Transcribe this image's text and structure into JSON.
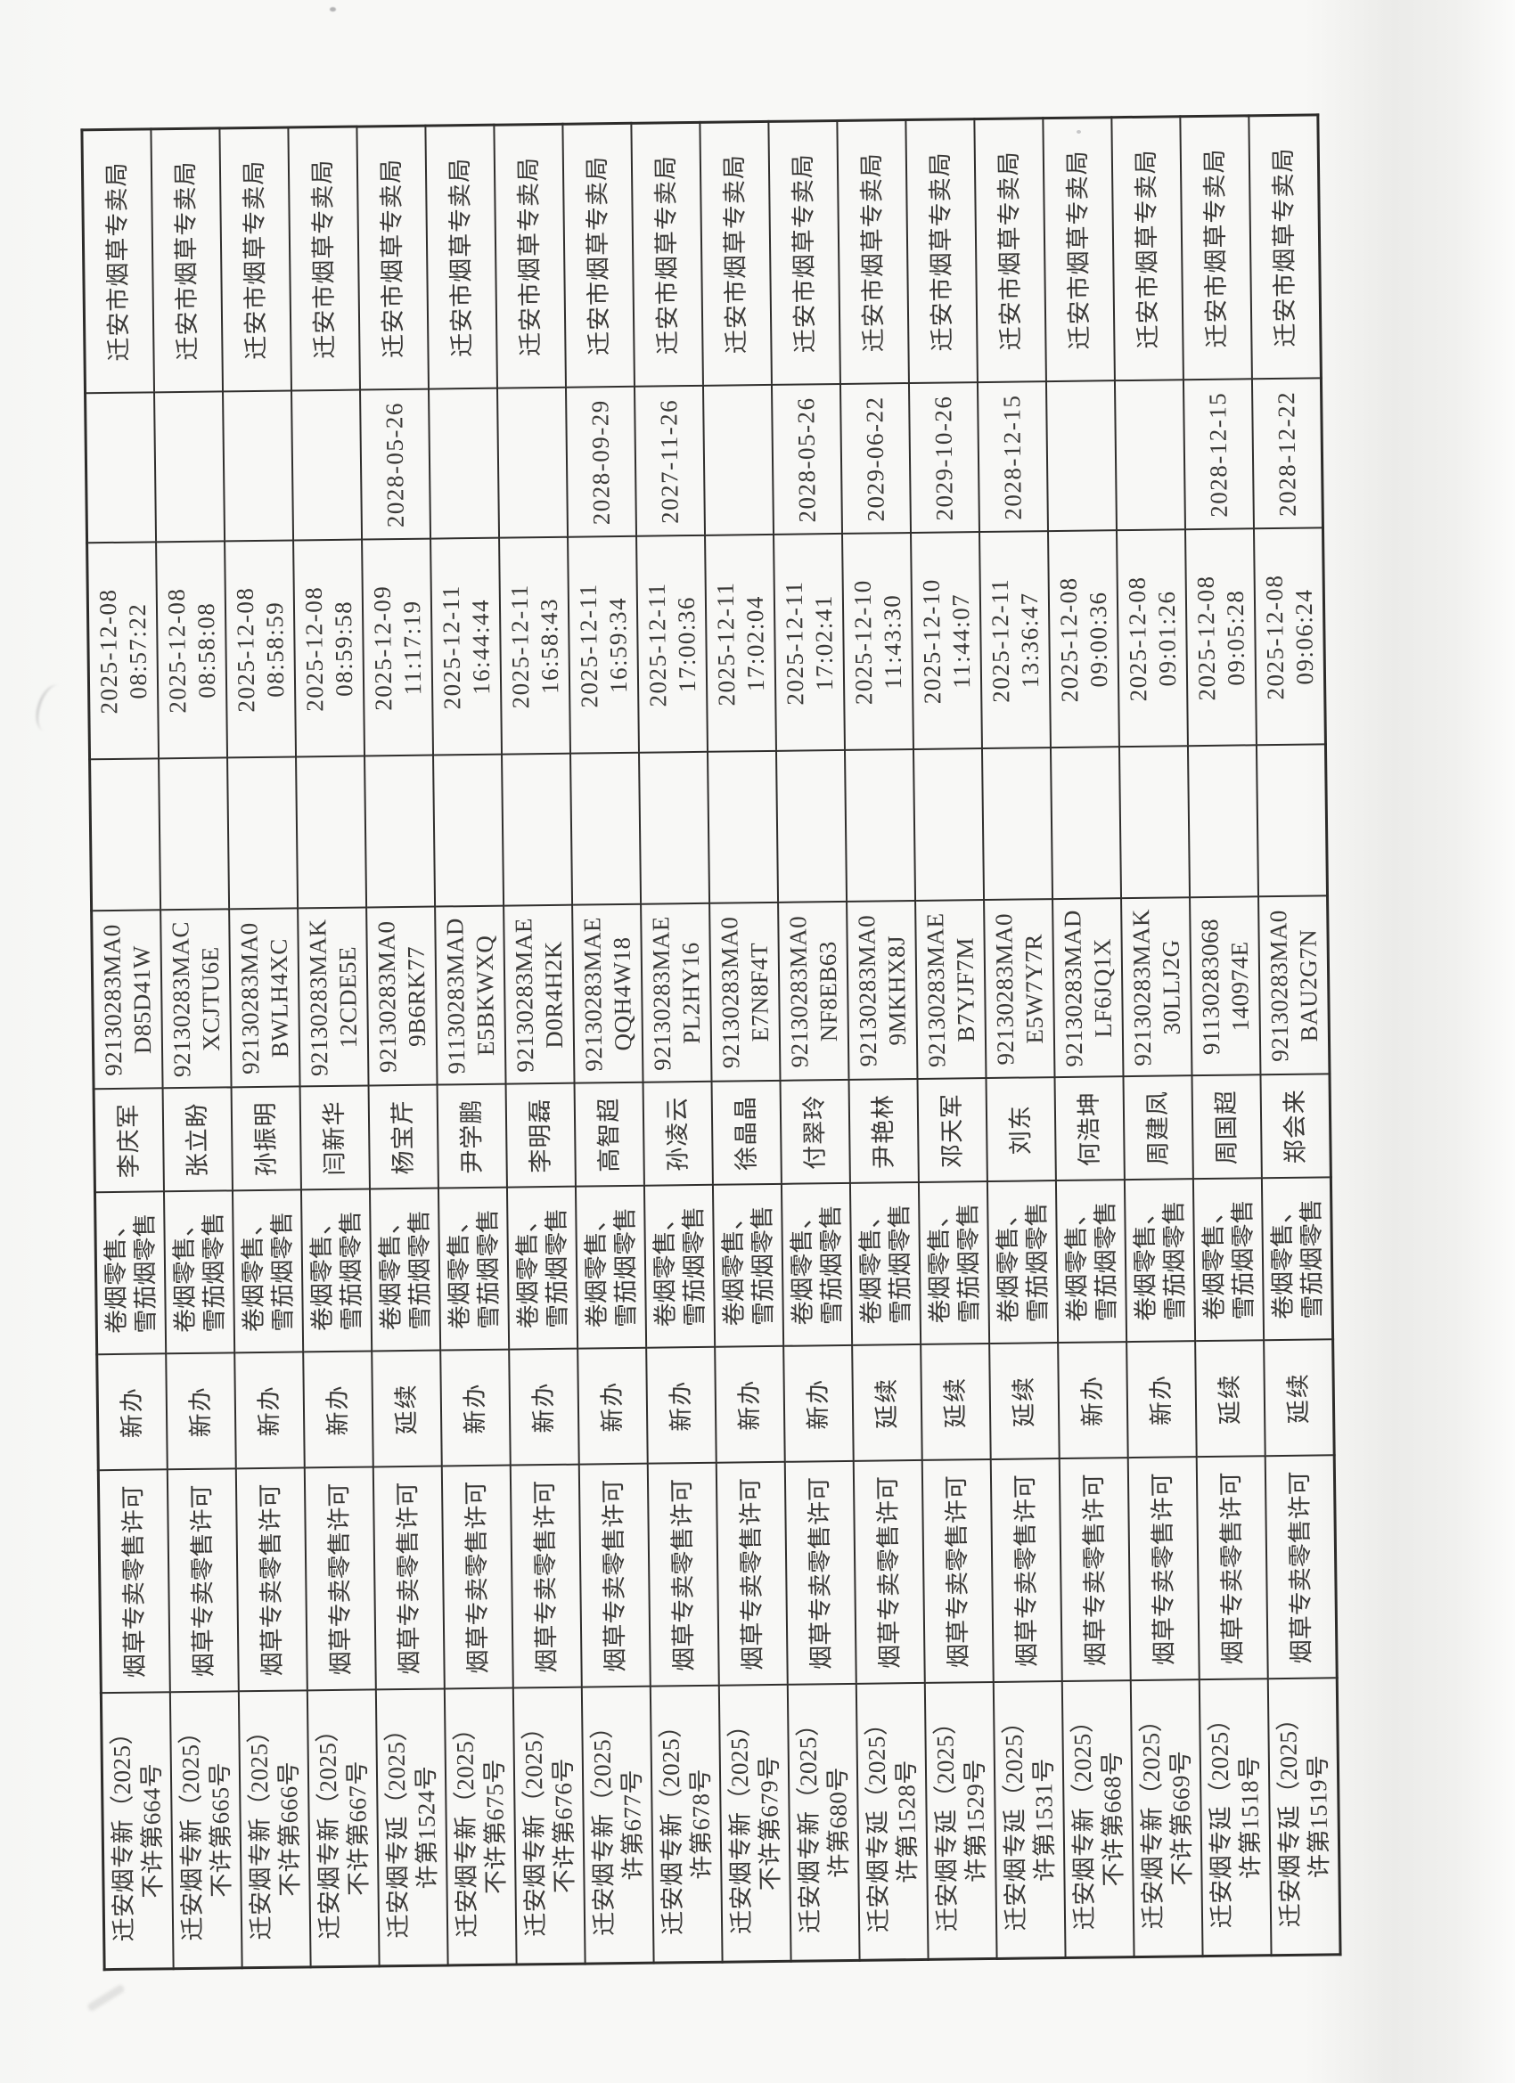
{
  "page": {
    "kind": "scanned tobacco retail license decision table (rotated 90°)",
    "paper_color": "#f8f8f6",
    "ink_color": "#3a3937",
    "grid_color": "#302f2d"
  },
  "table": {
    "field_order": [
      "doc_number",
      "category",
      "apply_type",
      "scope",
      "name",
      "credit_code",
      "blank",
      "license_time",
      "valid_until",
      "authority"
    ],
    "records": [
      {
        "doc_number": "迁安烟专新（2025）\n不许第664号",
        "category": "烟草专卖零售许可",
        "apply_type": "新办",
        "scope": "卷烟零售、\n雪茄烟零售",
        "name": "李庆军",
        "credit_code": "92130283MA0\nD85D41W",
        "blank": "",
        "license_time": "2025-12-08\n08:57:22",
        "valid_until": "",
        "authority": "迁安市烟草专卖局"
      },
      {
        "doc_number": "迁安烟专新（2025）\n不许第665号",
        "category": "烟草专卖零售许可",
        "apply_type": "新办",
        "scope": "卷烟零售、\n雪茄烟零售",
        "name": "张立盼",
        "credit_code": "92130283MAC\nXCJTU6E",
        "blank": "",
        "license_time": "2025-12-08\n08:58:08",
        "valid_until": "",
        "authority": "迁安市烟草专卖局"
      },
      {
        "doc_number": "迁安烟专新（2025）\n不许第666号",
        "category": "烟草专卖零售许可",
        "apply_type": "新办",
        "scope": "卷烟零售、\n雪茄烟零售",
        "name": "孙振明",
        "credit_code": "92130283MA0\nBWLH4XC",
        "blank": "",
        "license_time": "2025-12-08\n08:58:59",
        "valid_until": "",
        "authority": "迁安市烟草专卖局"
      },
      {
        "doc_number": "迁安烟专新（2025）\n不许第667号",
        "category": "烟草专卖零售许可",
        "apply_type": "新办",
        "scope": "卷烟零售、\n雪茄烟零售",
        "name": "闫新华",
        "credit_code": "92130283MAK\n12CDE5E",
        "blank": "",
        "license_time": "2025-12-08\n08:59:58",
        "valid_until": "",
        "authority": "迁安市烟草专卖局"
      },
      {
        "doc_number": "迁安烟专延（2025）\n许第1524号",
        "category": "烟草专卖零售许可",
        "apply_type": "延续",
        "scope": "卷烟零售、\n雪茄烟零售",
        "name": "杨宝芹",
        "credit_code": "92130283MA0\n9B6RK77",
        "blank": "",
        "license_time": "2025-12-09\n11:17:19",
        "valid_until": "2028-05-26",
        "authority": "迁安市烟草专卖局"
      },
      {
        "doc_number": "迁安烟专新（2025）\n不许第675号",
        "category": "烟草专卖零售许可",
        "apply_type": "新办",
        "scope": "卷烟零售、\n雪茄烟零售",
        "name": "尹学鹏",
        "credit_code": "91130283MAD\nE5BKWXQ",
        "blank": "",
        "license_time": "2025-12-11\n16:44:44",
        "valid_until": "",
        "authority": "迁安市烟草专卖局"
      },
      {
        "doc_number": "迁安烟专新（2025）\n不许第676号",
        "category": "烟草专卖零售许可",
        "apply_type": "新办",
        "scope": "卷烟零售、\n雪茄烟零售",
        "name": "李明磊",
        "credit_code": "92130283MAE\nD0R4H2K",
        "blank": "",
        "license_time": "2025-12-11\n16:58:43",
        "valid_until": "",
        "authority": "迁安市烟草专卖局"
      },
      {
        "doc_number": "迁安烟专新（2025）\n许第677号",
        "category": "烟草专卖零售许可",
        "apply_type": "新办",
        "scope": "卷烟零售、\n雪茄烟零售",
        "name": "高智超",
        "credit_code": "92130283MAE\nQQH4W18",
        "blank": "",
        "license_time": "2025-12-11\n16:59:34",
        "valid_until": "2028-09-29",
        "authority": "迁安市烟草专卖局"
      },
      {
        "doc_number": "迁安烟专新（2025）\n许第678号",
        "category": "烟草专卖零售许可",
        "apply_type": "新办",
        "scope": "卷烟零售、\n雪茄烟零售",
        "name": "孙凌云",
        "credit_code": "92130283MAE\nPL2HY16",
        "blank": "",
        "license_time": "2025-12-11\n17:00:36",
        "valid_until": "2027-11-26",
        "authority": "迁安市烟草专卖局"
      },
      {
        "doc_number": "迁安烟专新（2025）\n不许第679号",
        "category": "烟草专卖零售许可",
        "apply_type": "新办",
        "scope": "卷烟零售、\n雪茄烟零售",
        "name": "徐晶晶",
        "credit_code": "92130283MA0\nE7N8F4T",
        "blank": "",
        "license_time": "2025-12-11\n17:02:04",
        "valid_until": "",
        "authority": "迁安市烟草专卖局"
      },
      {
        "doc_number": "迁安烟专新（2025）\n许第680号",
        "category": "烟草专卖零售许可",
        "apply_type": "新办",
        "scope": "卷烟零售、\n雪茄烟零售",
        "name": "付翠玲",
        "credit_code": "92130283MA0\nNF8EB63",
        "blank": "",
        "license_time": "2025-12-11\n17:02:41",
        "valid_until": "2028-05-26",
        "authority": "迁安市烟草专卖局"
      },
      {
        "doc_number": "迁安烟专延（2025）\n许第1528号",
        "category": "烟草专卖零售许可",
        "apply_type": "延续",
        "scope": "卷烟零售、\n雪茄烟零售",
        "name": "尹艳林",
        "credit_code": "92130283MA0\n9MKHX8J",
        "blank": "",
        "license_time": "2025-12-10\n11:43:30",
        "valid_until": "2029-06-22",
        "authority": "迁安市烟草专卖局"
      },
      {
        "doc_number": "迁安烟专延（2025）\n许第1529号",
        "category": "烟草专卖零售许可",
        "apply_type": "延续",
        "scope": "卷烟零售、\n雪茄烟零售",
        "name": "邓天军",
        "credit_code": "92130283MAE\nB7YJF7M",
        "blank": "",
        "license_time": "2025-12-10\n11:44:07",
        "valid_until": "2029-10-26",
        "authority": "迁安市烟草专卖局"
      },
      {
        "doc_number": "迁安烟专延（2025）\n许第1531号",
        "category": "烟草专卖零售许可",
        "apply_type": "延续",
        "scope": "卷烟零售、\n雪茄烟零售",
        "name": "刘东",
        "credit_code": "92130283MA0\nE5W7Y7R",
        "blank": "",
        "license_time": "2025-12-11\n13:36:47",
        "valid_until": "2028-12-15",
        "authority": "迁安市烟草专卖局"
      },
      {
        "doc_number": "迁安烟专新（2025）\n不许第668号",
        "category": "烟草专卖零售许可",
        "apply_type": "新办",
        "scope": "卷烟零售、\n雪茄烟零售",
        "name": "何浩坤",
        "credit_code": "92130283MAD\nLF6JQ1X",
        "blank": "",
        "license_time": "2025-12-08\n09:00:36",
        "valid_until": "",
        "authority": "迁安市烟草专卖局"
      },
      {
        "doc_number": "迁安烟专新（2025）\n不许第669号",
        "category": "烟草专卖零售许可",
        "apply_type": "新办",
        "scope": "卷烟零售、\n雪茄烟零售",
        "name": "周建凤",
        "credit_code": "92130283MAK\n30LLJ2G",
        "blank": "",
        "license_time": "2025-12-08\n09:01:26",
        "valid_until": "",
        "authority": "迁安市烟草专卖局"
      },
      {
        "doc_number": "迁安烟专延（2025）\n许第1518号",
        "category": "烟草专卖零售许可",
        "apply_type": "延续",
        "scope": "卷烟零售、\n雪茄烟零售",
        "name": "周国超",
        "credit_code": "91130283068\n140974E",
        "blank": "",
        "license_time": "2025-12-08\n09:05:28",
        "valid_until": "2028-12-15",
        "authority": "迁安市烟草专卖局"
      },
      {
        "doc_number": "迁安烟专延（2025）\n许第1519号",
        "category": "烟草专卖零售许可",
        "apply_type": "延续",
        "scope": "卷烟零售、\n雪茄烟零售",
        "name": "郑会来",
        "credit_code": "92130283MA0\nBAU2G7N",
        "blank": "",
        "license_time": "2025-12-08\n09:06:24",
        "valid_until": "2028-12-22",
        "authority": "迁安市烟草专卖局"
      }
    ]
  }
}
